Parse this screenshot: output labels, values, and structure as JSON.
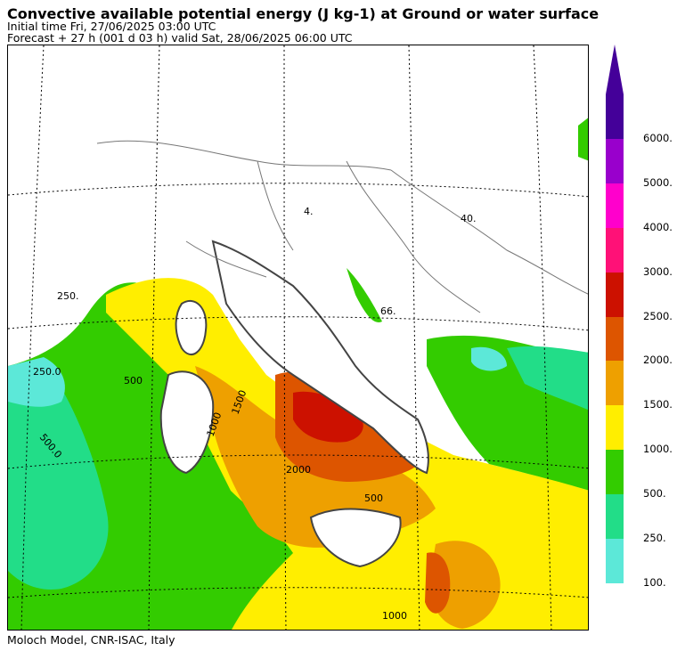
{
  "header": {
    "title": "Convective available potential energy (J kg-1) at Ground or water surface",
    "initial_time": "Initial time  Fri, 27/06/2025  03:00 UTC",
    "forecast": "Forecast  +  27 h  (001 d 03 h)  valid Sat, 28/06/2025 06:00 UTC"
  },
  "footer": {
    "credit": "Moloch Model, CNR-ISAC, Italy"
  },
  "legend": {
    "bands": [
      {
        "label": "100.",
        "color": "#5ce8d8"
      },
      {
        "label": "250.",
        "color": "#22dd88"
      },
      {
        "label": "500.",
        "color": "#33cc00"
      },
      {
        "label": "1000.",
        "color": "#ffee00"
      },
      {
        "label": "1500.",
        "color": "#eea000"
      },
      {
        "label": "2000.",
        "color": "#dd5500"
      },
      {
        "label": "2500.",
        "color": "#cc1100"
      },
      {
        "label": "3000.",
        "color": "#ff1177"
      },
      {
        "label": "4000.",
        "color": "#ff00cc"
      },
      {
        "label": "5000.",
        "color": "#9900cc"
      },
      {
        "label": "6000.",
        "color": "#440099"
      }
    ],
    "top_arrow_color": "#440099"
  },
  "map_labels": {
    "lbl_4": "4.",
    "lbl_40": "40.",
    "lbl_66": "66.",
    "lbl_250a": "250.",
    "lbl_250b": "250.0",
    "lbl_500a": "500.0",
    "lbl_500b": "500",
    "lbl_1500": "1500",
    "lbl_1000a": "1000",
    "lbl_2000": "2000",
    "lbl_1000b": "1000",
    "lbl_500c": "500"
  }
}
